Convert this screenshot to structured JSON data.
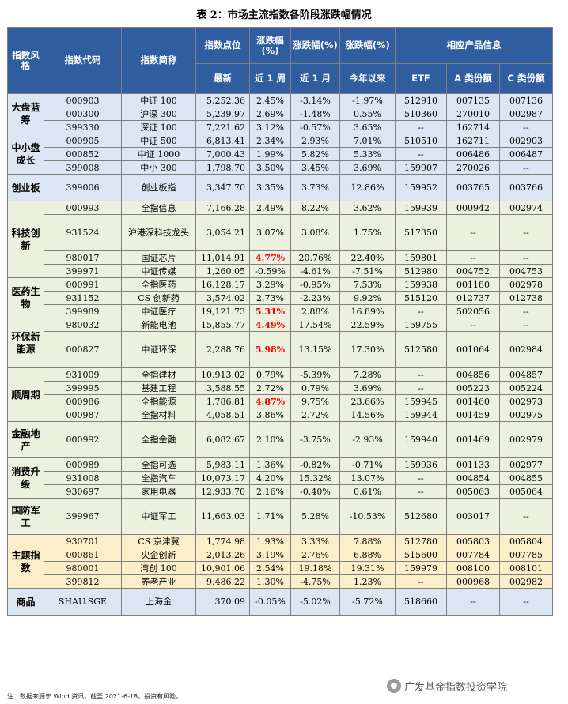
{
  "title": "表 2：市场主流指数各阶段涨跌幅情况",
  "headers": {
    "style": "指数风格",
    "code": "指数代码",
    "name": "指数简称",
    "level": "指数点位",
    "level_sub": "最新",
    "chg1": "涨跌幅(%)",
    "chg1_sub": "近 1 周",
    "chg2": "涨跌幅(%)",
    "chg2_sub": "近 1 月",
    "chg3": "涨跌幅(%)",
    "chg3_sub": "今年以来",
    "product": "相应产品信息",
    "etf": "ETF",
    "a_share": "A 类份额",
    "c_share": "C 类份额"
  },
  "groups": [
    {
      "style": "大盘蓝筹",
      "band": "A",
      "rows": [
        {
          "code": "000903",
          "name": "中证 100",
          "level": "5,252.36",
          "w": "2.45%",
          "m": "-3.14%",
          "y": "-1.97%",
          "etf": "512910",
          "a": "007135",
          "c": "007136"
        },
        {
          "code": "000300",
          "name": "沪深 300",
          "level": "5,239.97",
          "w": "2.69%",
          "m": "-1.48%",
          "y": "0.55%",
          "etf": "510360",
          "a": "270010",
          "c": "002987"
        },
        {
          "code": "399330",
          "name": "深证 100",
          "level": "7,221.62",
          "w": "3.12%",
          "m": "-0.57%",
          "y": "3.65%",
          "etf": "--",
          "a": "162714",
          "c": "--"
        }
      ]
    },
    {
      "style": "中小盘成长",
      "band": "A",
      "rows": [
        {
          "code": "000905",
          "name": "中证 500",
          "level": "6,813.41",
          "w": "2.34%",
          "m": "2.93%",
          "y": "7.01%",
          "etf": "510510",
          "a": "162711",
          "c": "002903"
        },
        {
          "code": "000852",
          "name": "中证 1000",
          "level": "7,000.43",
          "w": "1.99%",
          "m": "5.82%",
          "y": "5.33%",
          "etf": "--",
          "a": "006486",
          "c": "006487"
        },
        {
          "code": "399008",
          "name": "中小 300",
          "level": "1,798.70",
          "w": "3.50%",
          "m": "3.45%",
          "y": "3.69%",
          "etf": "159907",
          "a": "270026",
          "c": "--"
        }
      ]
    },
    {
      "style": "创业板",
      "band": "A",
      "rows": [
        {
          "code": "399006",
          "name": "创业板指",
          "level": "3,347.70",
          "w": "3.35%",
          "m": "3.73%",
          "y": "12.86%",
          "etf": "159952",
          "a": "003765",
          "c": "003766"
        }
      ]
    },
    {
      "style": "科技创新",
      "band": "B",
      "rows": [
        {
          "code": "000993",
          "name": "全指信息",
          "level": "7,166.28",
          "w": "2.49%",
          "m": "8.22%",
          "y": "3.62%",
          "etf": "159939",
          "a": "000942",
          "c": "002974"
        },
        {
          "code": "931524",
          "name": "沪港深科技龙头",
          "level": "3,054.21",
          "w": "3.07%",
          "m": "3.08%",
          "y": "1.75%",
          "etf": "517350",
          "a": "--",
          "c": "--",
          "tall": true
        },
        {
          "code": "980017",
          "name": "国证芯片",
          "level": "11,014.91",
          "w": "4.77%",
          "m": "20.76%",
          "y": "22.40%",
          "etf": "159801",
          "a": "--",
          "c": "--",
          "red": true
        },
        {
          "code": "399971",
          "name": "中证传媒",
          "level": "1,260.05",
          "w": "-0.59%",
          "m": "-4.61%",
          "y": "-7.51%",
          "etf": "512980",
          "a": "004752",
          "c": "004753"
        }
      ]
    },
    {
      "style": "医药生物",
      "band": "B",
      "rows": [
        {
          "code": "000991",
          "name": "全指医药",
          "level": "16,128.17",
          "w": "3.29%",
          "m": "-0.95%",
          "y": "7.53%",
          "etf": "159938",
          "a": "001180",
          "c": "002978"
        },
        {
          "code": "931152",
          "name": "CS 创新药",
          "level": "3,574.02",
          "w": "2.73%",
          "m": "-2.23%",
          "y": "9.92%",
          "etf": "515120",
          "a": "012737",
          "c": "012738"
        },
        {
          "code": "399989",
          "name": "中证医疗",
          "level": "19,121.73",
          "w": "5.31%",
          "m": "2.88%",
          "y": "16.89%",
          "etf": "--",
          "a": "502056",
          "c": "--",
          "red": true
        }
      ]
    },
    {
      "style": "环保新能源",
      "band": "B",
      "rows": [
        {
          "code": "980032",
          "name": "新能电池",
          "level": "15,855.77",
          "w": "4.49%",
          "m": "17.54%",
          "y": "22.59%",
          "etf": "159755",
          "a": "--",
          "c": "--",
          "red": true
        },
        {
          "code": "000827",
          "name": "中证环保",
          "level": "2,288.76",
          "w": "5.98%",
          "m": "13.15%",
          "y": "17.30%",
          "etf": "512580",
          "a": "001064",
          "c": "002984",
          "red": true,
          "tall": true
        }
      ]
    },
    {
      "style": "顺周期",
      "band": "B",
      "rows": [
        {
          "code": "931009",
          "name": "全指建材",
          "level": "10,913.02",
          "w": "0.79%",
          "m": "-5.39%",
          "y": "7.28%",
          "etf": "--",
          "a": "004856",
          "c": "004857"
        },
        {
          "code": "399995",
          "name": "基建工程",
          "level": "3,588.55",
          "w": "2.72%",
          "m": "0.79%",
          "y": "3.69%",
          "etf": "--",
          "a": "005223",
          "c": "005224"
        },
        {
          "code": "000986",
          "name": "全指能源",
          "level": "1,786.81",
          "w": "4.87%",
          "m": "9.75%",
          "y": "23.66%",
          "etf": "159945",
          "a": "001460",
          "c": "002973",
          "red": true
        },
        {
          "code": "000987",
          "name": "全指材料",
          "level": "4,058.51",
          "w": "3.86%",
          "m": "2.72%",
          "y": "14.56%",
          "etf": "159944",
          "a": "001459",
          "c": "002975"
        }
      ]
    },
    {
      "style": "金融地产",
      "band": "B",
      "rows": [
        {
          "code": "000992",
          "name": "全指金融",
          "level": "6,082.67",
          "w": "2.10%",
          "m": "-3.75%",
          "y": "-2.93%",
          "etf": "159940",
          "a": "001469",
          "c": "002979",
          "tall": true
        }
      ]
    },
    {
      "style": "消费升级",
      "band": "B",
      "rows": [
        {
          "code": "000989",
          "name": "全指可选",
          "level": "5,983.11",
          "w": "1.36%",
          "m": "-0.82%",
          "y": "-0.71%",
          "etf": "159936",
          "a": "001133",
          "c": "002977"
        },
        {
          "code": "931008",
          "name": "全指汽车",
          "level": "10,073.17",
          "w": "4.20%",
          "m": "15.32%",
          "y": "13.07%",
          "etf": "--",
          "a": "004854",
          "c": "004855"
        },
        {
          "code": "930697",
          "name": "家用电器",
          "level": "12,933.70",
          "w": "2.16%",
          "m": "-0.40%",
          "y": "0.61%",
          "etf": "--",
          "a": "005063",
          "c": "005064"
        }
      ]
    },
    {
      "style": "国防军工",
      "band": "B",
      "rows": [
        {
          "code": "399967",
          "name": "中证军工",
          "level": "11,663.03",
          "w": "1.71%",
          "m": "5.28%",
          "y": "-10.53%",
          "etf": "512680",
          "a": "003017",
          "c": "--",
          "tall": true
        }
      ]
    },
    {
      "style": "主题指数",
      "band": "C",
      "rows": [
        {
          "code": "930701",
          "name": "CS 京津冀",
          "level": "1,774.98",
          "w": "1.93%",
          "m": "3.33%",
          "y": "7.88%",
          "etf": "512780",
          "a": "005803",
          "c": "005804"
        },
        {
          "code": "000861",
          "name": "央企创新",
          "level": "2,013.26",
          "w": "3.19%",
          "m": "2.76%",
          "y": "6.88%",
          "etf": "515600",
          "a": "007784",
          "c": "007785"
        },
        {
          "code": "980001",
          "name": "湾创 100",
          "level": "10,901.06",
          "w": "2.54%",
          "m": "19.18%",
          "y": "19.31%",
          "etf": "159979",
          "a": "008100",
          "c": "008101"
        },
        {
          "code": "399812",
          "name": "养老产业",
          "level": "9,486.22",
          "w": "1.30%",
          "m": "-4.75%",
          "y": "1.23%",
          "etf": "--",
          "a": "000968",
          "c": "002982"
        }
      ]
    },
    {
      "style": "商品",
      "band": "D",
      "rows": [
        {
          "code": "SHAU.SGE",
          "name": "上海金",
          "level": "370.09",
          "w": "-0.05%",
          "m": "-5.02%",
          "y": "-5.72%",
          "etf": "518660",
          "a": "--",
          "c": "--"
        }
      ]
    }
  ],
  "footnote": "注：数据来源于 Wind 资讯，截至 2021-6-18，投资有风险。",
  "watermark": "广发基金指数投资学院"
}
